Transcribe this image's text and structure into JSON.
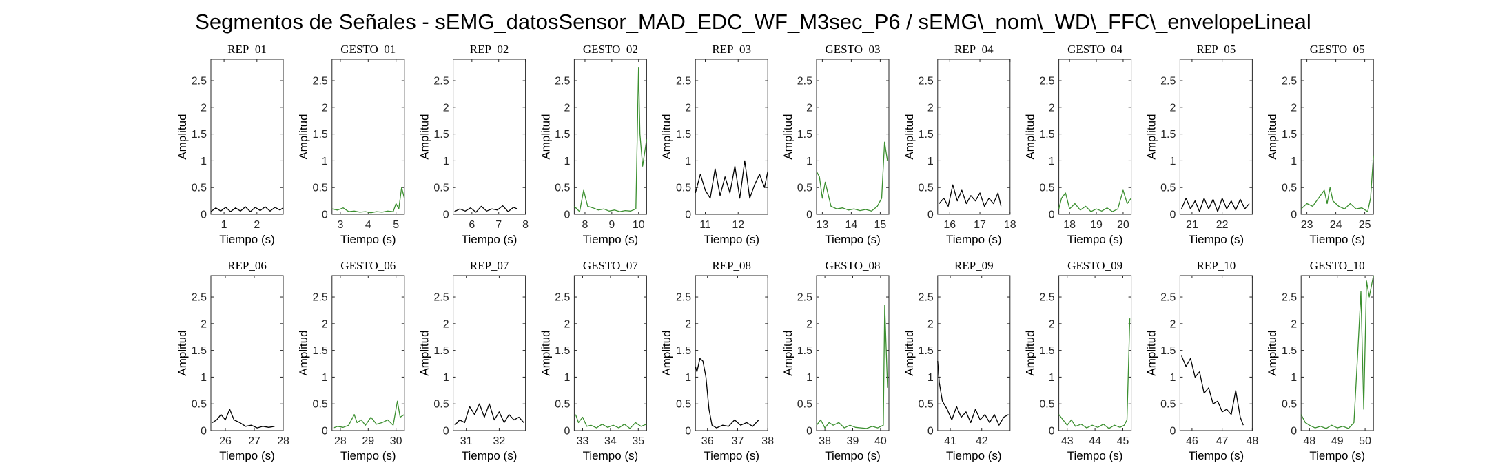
{
  "figure": {
    "title": "Segmentos de Señales - sEMG_datosSensor_MAD_EDC_WF_M3sec_P6 / sEMG\\_nom\\_WD\\_FFC\\_envelopeLineal"
  },
  "colors": {
    "rep": "#000000",
    "gesto": "#3b8f2f",
    "axis": "#262626"
  },
  "chart_data": [
    {
      "type": "line",
      "title": "REP_01",
      "xlabel": "Tiempo (s)",
      "ylabel": "Amplitud",
      "xlim": [
        0.6,
        2.8
      ],
      "ylim": [
        0,
        2.9
      ],
      "xticks": [
        1,
        2
      ],
      "yticks": [
        0,
        0.5,
        1,
        1.5,
        2,
        2.5
      ],
      "color": "rep",
      "x": [
        0.6,
        0.75,
        0.9,
        1.05,
        1.2,
        1.35,
        1.5,
        1.65,
        1.8,
        1.95,
        2.1,
        2.25,
        2.4,
        2.55,
        2.7,
        2.8
      ],
      "y": [
        0.05,
        0.12,
        0.06,
        0.13,
        0.05,
        0.12,
        0.06,
        0.14,
        0.05,
        0.13,
        0.07,
        0.14,
        0.06,
        0.13,
        0.08,
        0.12
      ]
    },
    {
      "type": "line",
      "title": "GESTO_01",
      "xlabel": "Tiempo (s)",
      "ylabel": "Amplitud",
      "xlim": [
        2.7,
        5.3
      ],
      "ylim": [
        0,
        2.9
      ],
      "xticks": [
        3,
        4,
        5
      ],
      "yticks": [
        0,
        0.5,
        1,
        1.5,
        2,
        2.5
      ],
      "color": "gesto",
      "x": [
        2.7,
        2.9,
        3.1,
        3.3,
        3.5,
        3.7,
        3.9,
        4.1,
        4.3,
        4.5,
        4.7,
        4.9,
        5.0,
        5.1,
        5.2,
        5.3
      ],
      "y": [
        0.1,
        0.08,
        0.12,
        0.05,
        0.06,
        0.04,
        0.05,
        0.03,
        0.05,
        0.04,
        0.06,
        0.05,
        0.2,
        0.1,
        0.5,
        0.3
      ]
    },
    {
      "type": "line",
      "title": "REP_02",
      "xlabel": "Tiempo (s)",
      "ylabel": "Amplitud",
      "xlim": [
        5.3,
        8.0
      ],
      "ylim": [
        0,
        2.9
      ],
      "xticks": [
        6,
        7,
        8
      ],
      "yticks": [
        0,
        0.5,
        1,
        1.5,
        2,
        2.5
      ],
      "color": "rep",
      "x": [
        5.35,
        5.55,
        5.75,
        5.95,
        6.15,
        6.35,
        6.55,
        6.75,
        6.95,
        7.15,
        7.35,
        7.55,
        7.7
      ],
      "y": [
        0.05,
        0.1,
        0.06,
        0.12,
        0.04,
        0.15,
        0.06,
        0.1,
        0.08,
        0.16,
        0.05,
        0.13,
        0.1
      ]
    },
    {
      "type": "line",
      "title": "GESTO_02",
      "xlabel": "Tiempo (s)",
      "ylabel": "Amplitud",
      "xlim": [
        7.6,
        10.3
      ],
      "ylim": [
        0,
        2.9
      ],
      "xticks": [
        8,
        9,
        10
      ],
      "yticks": [
        0,
        0.5,
        1,
        1.5,
        2,
        2.5
      ],
      "color": "gesto",
      "x": [
        7.6,
        7.8,
        7.95,
        8.1,
        8.3,
        8.5,
        8.7,
        8.9,
        9.1,
        9.3,
        9.5,
        9.7,
        9.9,
        10.0,
        10.05,
        10.15,
        10.3
      ],
      "y": [
        0.15,
        0.05,
        0.45,
        0.15,
        0.12,
        0.08,
        0.1,
        0.06,
        0.08,
        0.05,
        0.07,
        0.06,
        0.1,
        2.75,
        1.5,
        0.9,
        1.4
      ]
    },
    {
      "type": "line",
      "title": "REP_03",
      "xlabel": "Tiempo (s)",
      "ylabel": "Amplitud",
      "xlim": [
        10.7,
        12.9
      ],
      "ylim": [
        0,
        2.9
      ],
      "xticks": [
        11,
        12
      ],
      "yticks": [
        0,
        0.5,
        1,
        1.5,
        2,
        2.5
      ],
      "color": "rep",
      "x": [
        10.7,
        10.85,
        11.0,
        11.15,
        11.3,
        11.45,
        11.6,
        11.75,
        11.9,
        12.05,
        12.2,
        12.35,
        12.5,
        12.65,
        12.8,
        12.9
      ],
      "y": [
        0.4,
        0.75,
        0.45,
        0.3,
        0.85,
        0.35,
        0.7,
        0.4,
        0.9,
        0.3,
        1.0,
        0.3,
        0.55,
        0.75,
        0.5,
        0.8
      ]
    },
    {
      "type": "line",
      "title": "GESTO_03",
      "xlabel": "Tiempo (s)",
      "ylabel": "Amplitud",
      "xlim": [
        12.8,
        15.3
      ],
      "ylim": [
        0,
        2.9
      ],
      "xticks": [
        13,
        14,
        15
      ],
      "yticks": [
        0,
        0.5,
        1,
        1.5,
        2,
        2.5
      ],
      "color": "gesto",
      "x": [
        12.8,
        12.9,
        13.0,
        13.1,
        13.3,
        13.5,
        13.7,
        13.9,
        14.1,
        14.3,
        14.5,
        14.7,
        14.9,
        15.05,
        15.15,
        15.25
      ],
      "y": [
        0.8,
        0.7,
        0.3,
        0.6,
        0.15,
        0.1,
        0.12,
        0.08,
        0.1,
        0.07,
        0.09,
        0.06,
        0.15,
        0.3,
        1.35,
        1.0
      ]
    },
    {
      "type": "line",
      "title": "REP_04",
      "xlabel": "Tiempo (s)",
      "ylabel": "Amplitud",
      "xlim": [
        15.6,
        18.0
      ],
      "ylim": [
        0,
        2.9
      ],
      "xticks": [
        16,
        17,
        18
      ],
      "yticks": [
        0,
        0.5,
        1,
        1.5,
        2,
        2.5
      ],
      "color": "rep",
      "x": [
        15.65,
        15.8,
        15.95,
        16.1,
        16.25,
        16.4,
        16.55,
        16.7,
        16.85,
        17.0,
        17.15,
        17.3,
        17.45,
        17.6,
        17.7
      ],
      "y": [
        0.2,
        0.3,
        0.15,
        0.55,
        0.25,
        0.45,
        0.2,
        0.35,
        0.25,
        0.4,
        0.15,
        0.3,
        0.2,
        0.4,
        0.15
      ]
    },
    {
      "type": "line",
      "title": "GESTO_04",
      "xlabel": "Tiempo (s)",
      "ylabel": "Amplitud",
      "xlim": [
        17.6,
        20.3
      ],
      "ylim": [
        0,
        2.9
      ],
      "xticks": [
        18,
        19,
        20
      ],
      "yticks": [
        0,
        0.5,
        1,
        1.5,
        2,
        2.5
      ],
      "color": "gesto",
      "x": [
        17.6,
        17.7,
        17.85,
        18.0,
        18.2,
        18.4,
        18.6,
        18.8,
        19.0,
        19.2,
        19.4,
        19.6,
        19.8,
        20.0,
        20.15,
        20.3
      ],
      "y": [
        0.1,
        0.3,
        0.4,
        0.1,
        0.2,
        0.08,
        0.15,
        0.05,
        0.1,
        0.06,
        0.12,
        0.05,
        0.1,
        0.45,
        0.2,
        0.3
      ]
    },
    {
      "type": "line",
      "title": "REP_05",
      "xlabel": "Tiempo (s)",
      "ylabel": "Amplitud",
      "xlim": [
        20.6,
        23.0
      ],
      "ylim": [
        0,
        2.9
      ],
      "xticks": [
        21,
        22
      ],
      "yticks": [
        0,
        0.5,
        1,
        1.5,
        2,
        2.5
      ],
      "color": "rep",
      "x": [
        20.65,
        20.8,
        20.95,
        21.1,
        21.25,
        21.4,
        21.55,
        21.7,
        21.85,
        22.0,
        22.15,
        22.3,
        22.45,
        22.6,
        22.75,
        22.9
      ],
      "y": [
        0.1,
        0.3,
        0.1,
        0.25,
        0.05,
        0.3,
        0.1,
        0.28,
        0.05,
        0.3,
        0.1,
        0.25,
        0.08,
        0.28,
        0.1,
        0.2
      ]
    },
    {
      "type": "line",
      "title": "GESTO_05",
      "xlabel": "Tiempo (s)",
      "ylabel": "Amplitud",
      "xlim": [
        22.8,
        25.3
      ],
      "ylim": [
        0,
        2.9
      ],
      "xticks": [
        23,
        24,
        25
      ],
      "yticks": [
        0,
        0.5,
        1,
        1.5,
        2,
        2.5
      ],
      "color": "gesto",
      "x": [
        22.8,
        23.0,
        23.2,
        23.4,
        23.6,
        23.7,
        23.8,
        23.9,
        24.1,
        24.3,
        24.5,
        24.7,
        24.9,
        25.1,
        25.2,
        25.3
      ],
      "y": [
        0.1,
        0.2,
        0.15,
        0.3,
        0.45,
        0.2,
        0.5,
        0.25,
        0.15,
        0.1,
        0.2,
        0.1,
        0.12,
        0.05,
        0.3,
        1.1
      ]
    },
    {
      "type": "line",
      "title": "REP_06",
      "xlabel": "Tiempo (s)",
      "ylabel": "Amplitud",
      "xlim": [
        25.5,
        28.0
      ],
      "ylim": [
        0,
        2.9
      ],
      "xticks": [
        26,
        27,
        28
      ],
      "yticks": [
        0,
        0.5,
        1,
        1.5,
        2,
        2.5
      ],
      "color": "rep",
      "x": [
        25.55,
        25.7,
        25.85,
        26.0,
        26.15,
        26.3,
        26.5,
        26.7,
        26.9,
        27.1,
        27.3,
        27.5,
        27.7
      ],
      "y": [
        0.15,
        0.2,
        0.3,
        0.2,
        0.4,
        0.2,
        0.15,
        0.08,
        0.1,
        0.05,
        0.08,
        0.06,
        0.08
      ]
    },
    {
      "type": "line",
      "title": "GESTO_06",
      "xlabel": "Tiempo (s)",
      "ylabel": "Amplitud",
      "xlim": [
        27.7,
        30.3
      ],
      "ylim": [
        0,
        2.9
      ],
      "xticks": [
        28,
        29,
        30
      ],
      "yticks": [
        0,
        0.5,
        1,
        1.5,
        2,
        2.5
      ],
      "color": "gesto",
      "x": [
        27.75,
        27.9,
        28.1,
        28.3,
        28.5,
        28.6,
        28.75,
        28.9,
        29.1,
        29.3,
        29.5,
        29.7,
        29.9,
        30.05,
        30.15,
        30.3
      ],
      "y": [
        0.05,
        0.08,
        0.06,
        0.1,
        0.3,
        0.15,
        0.2,
        0.1,
        0.25,
        0.12,
        0.15,
        0.2,
        0.1,
        0.55,
        0.25,
        0.3
      ]
    },
    {
      "type": "line",
      "title": "REP_07",
      "xlabel": "Tiempo (s)",
      "ylabel": "Amplitud",
      "xlim": [
        30.6,
        32.8
      ],
      "ylim": [
        0,
        2.9
      ],
      "xticks": [
        31,
        32
      ],
      "yticks": [
        0,
        0.5,
        1,
        1.5,
        2,
        2.5
      ],
      "color": "rep",
      "x": [
        30.65,
        30.8,
        30.95,
        31.1,
        31.25,
        31.4,
        31.55,
        31.7,
        31.85,
        32.0,
        32.15,
        32.3,
        32.45,
        32.6,
        32.75
      ],
      "y": [
        0.1,
        0.2,
        0.15,
        0.45,
        0.3,
        0.5,
        0.25,
        0.5,
        0.2,
        0.35,
        0.15,
        0.3,
        0.2,
        0.25,
        0.15
      ]
    },
    {
      "type": "line",
      "title": "GESTO_07",
      "xlabel": "Tiempo (s)",
      "ylabel": "Amplitud",
      "xlim": [
        32.7,
        35.3
      ],
      "ylim": [
        0,
        2.9
      ],
      "xticks": [
        33,
        34,
        35
      ],
      "yticks": [
        0,
        0.5,
        1,
        1.5,
        2,
        2.5
      ],
      "color": "gesto",
      "x": [
        32.75,
        32.85,
        33.0,
        33.15,
        33.3,
        33.5,
        33.7,
        33.9,
        34.1,
        34.3,
        34.5,
        34.7,
        34.9,
        35.1,
        35.3
      ],
      "y": [
        0.3,
        0.15,
        0.25,
        0.08,
        0.1,
        0.05,
        0.12,
        0.06,
        0.1,
        0.05,
        0.12,
        0.04,
        0.15,
        0.08,
        0.12
      ]
    },
    {
      "type": "line",
      "title": "REP_08",
      "xlabel": "Tiempo (s)",
      "ylabel": "Amplitud",
      "xlim": [
        35.6,
        38.0
      ],
      "ylim": [
        0,
        2.9
      ],
      "xticks": [
        36,
        37,
        38
      ],
      "yticks": [
        0,
        0.5,
        1,
        1.5,
        2,
        2.5
      ],
      "color": "rep",
      "x": [
        35.6,
        35.65,
        35.75,
        35.85,
        35.95,
        36.05,
        36.15,
        36.3,
        36.5,
        36.7,
        36.9,
        37.1,
        37.3,
        37.5,
        37.7
      ],
      "y": [
        1.2,
        1.1,
        1.35,
        1.3,
        1.0,
        0.4,
        0.1,
        0.05,
        0.1,
        0.08,
        0.2,
        0.1,
        0.15,
        0.08,
        0.2
      ]
    },
    {
      "type": "line",
      "title": "GESTO_08",
      "xlabel": "Tiempo (s)",
      "ylabel": "Amplitud",
      "xlim": [
        37.7,
        40.3
      ],
      "ylim": [
        0,
        2.9
      ],
      "xticks": [
        38,
        39,
        40
      ],
      "yticks": [
        0,
        0.5,
        1,
        1.5,
        2,
        2.5
      ],
      "color": "gesto",
      "x": [
        37.7,
        37.85,
        38.0,
        38.15,
        38.3,
        38.5,
        38.7,
        38.9,
        39.1,
        39.3,
        39.5,
        39.7,
        39.9,
        40.1,
        40.15,
        40.25
      ],
      "y": [
        0.1,
        0.2,
        0.05,
        0.15,
        0.1,
        0.15,
        0.05,
        0.1,
        0.06,
        0.05,
        0.04,
        0.08,
        0.05,
        0.1,
        2.35,
        0.8
      ]
    },
    {
      "type": "line",
      "title": "REP_09",
      "xlabel": "Tiempo (s)",
      "ylabel": "Amplitud",
      "xlim": [
        40.6,
        42.9
      ],
      "ylim": [
        0,
        2.9
      ],
      "xticks": [
        41,
        42
      ],
      "yticks": [
        0,
        0.5,
        1,
        1.5,
        2,
        2.5
      ],
      "color": "rep",
      "x": [
        40.6,
        40.65,
        40.75,
        40.9,
        41.05,
        41.2,
        41.35,
        41.5,
        41.65,
        41.8,
        41.95,
        42.1,
        42.25,
        42.4,
        42.55,
        42.7,
        42.85
      ],
      "y": [
        1.3,
        0.9,
        0.55,
        0.4,
        0.2,
        0.45,
        0.25,
        0.35,
        0.15,
        0.4,
        0.2,
        0.3,
        0.15,
        0.3,
        0.1,
        0.25,
        0.3
      ]
    },
    {
      "type": "line",
      "title": "GESTO_09",
      "xlabel": "Tiempo (s)",
      "ylabel": "Amplitud",
      "xlim": [
        42.7,
        45.3
      ],
      "ylim": [
        0,
        2.9
      ],
      "xticks": [
        43,
        44,
        45
      ],
      "yticks": [
        0,
        0.5,
        1,
        1.5,
        2,
        2.5
      ],
      "color": "gesto",
      "x": [
        42.7,
        42.85,
        43.0,
        43.15,
        43.3,
        43.5,
        43.7,
        43.9,
        44.1,
        44.3,
        44.5,
        44.7,
        44.9,
        45.05,
        45.15,
        45.25
      ],
      "y": [
        0.3,
        0.2,
        0.1,
        0.2,
        0.08,
        0.12,
        0.05,
        0.1,
        0.06,
        0.12,
        0.04,
        0.1,
        0.06,
        0.1,
        0.2,
        2.1
      ]
    },
    {
      "type": "line",
      "title": "REP_10",
      "xlabel": "Tiempo (s)",
      "ylabel": "Amplitud",
      "xlim": [
        45.6,
        48.0
      ],
      "ylim": [
        0,
        2.9
      ],
      "xticks": [
        46,
        47,
        48
      ],
      "yticks": [
        0,
        0.5,
        1,
        1.5,
        2,
        2.5
      ],
      "color": "rep",
      "x": [
        45.65,
        45.8,
        45.95,
        46.1,
        46.25,
        46.4,
        46.55,
        46.7,
        46.85,
        47.0,
        47.15,
        47.3,
        47.45,
        47.6,
        47.7
      ],
      "y": [
        1.4,
        1.2,
        1.35,
        1.0,
        1.1,
        0.7,
        0.8,
        0.5,
        0.55,
        0.35,
        0.4,
        0.3,
        0.75,
        0.25,
        0.1
      ]
    },
    {
      "type": "line",
      "title": "GESTO_10",
      "xlabel": "Tiempo (s)",
      "ylabel": "Amplitud",
      "xlim": [
        47.7,
        50.3
      ],
      "ylim": [
        0,
        2.9
      ],
      "xticks": [
        48,
        49,
        50
      ],
      "yticks": [
        0,
        0.5,
        1,
        1.5,
        2,
        2.5
      ],
      "color": "gesto",
      "x": [
        47.7,
        47.85,
        48.0,
        48.2,
        48.4,
        48.6,
        48.8,
        49.0,
        49.2,
        49.4,
        49.6,
        49.75,
        49.85,
        49.95,
        50.05,
        50.15,
        50.3
      ],
      "y": [
        0.3,
        0.15,
        0.1,
        0.05,
        0.08,
        0.04,
        0.1,
        0.05,
        0.08,
        0.04,
        0.15,
        1.6,
        2.6,
        0.4,
        2.8,
        2.5,
        2.9
      ]
    }
  ]
}
